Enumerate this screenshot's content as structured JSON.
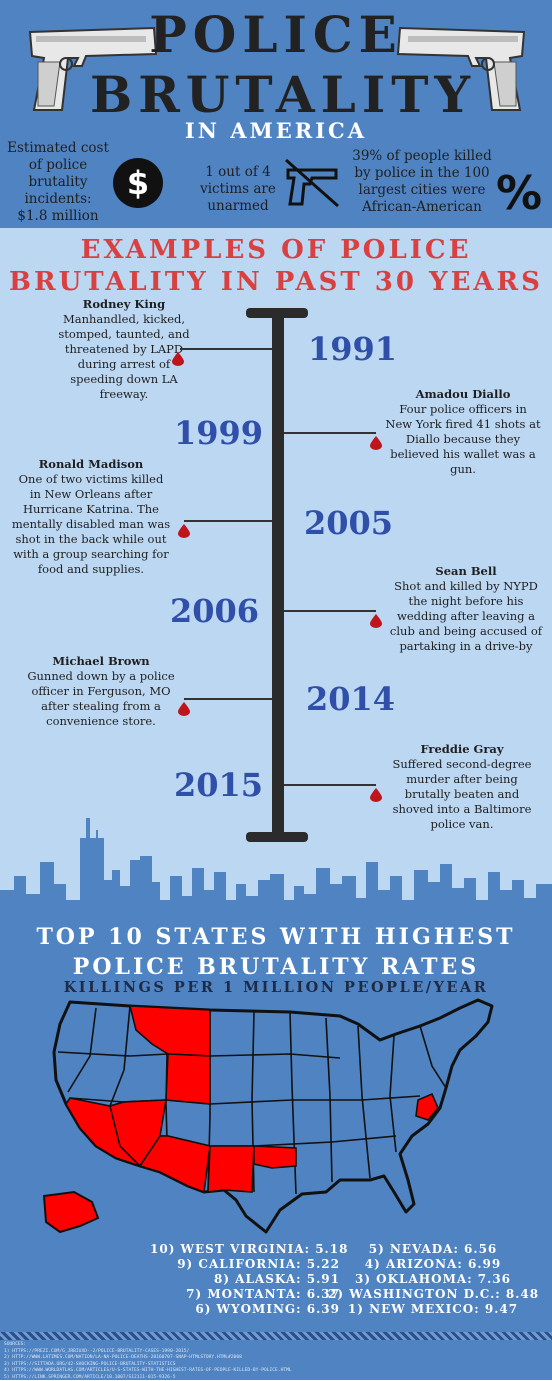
{
  "header": {
    "title_line1": "POLICE",
    "title_line2": "BRUTALITY",
    "title_line3": "IN AMERICA",
    "stat_cost": {
      "lines": [
        "Estimated cost",
        "of police",
        "brutality",
        "incidents:",
        "$1.8 million"
      ],
      "icon": "dollar-icon"
    },
    "stat_unarmed": {
      "lines": [
        "1 out of 4",
        "victims are",
        "unarmed"
      ],
      "icon": "gun-icon"
    },
    "stat_race": {
      "lines": [
        "39% of people killed",
        "by police in the 100",
        "largest cities were",
        "African-American"
      ],
      "icon": "percent-icon"
    }
  },
  "timeline": {
    "title_line1": "EXAMPLES OF POLICE",
    "title_line2": "BRUTALITY IN PAST 30 YEARS",
    "events": [
      {
        "year": "1991",
        "name": "Rodney King",
        "lines": [
          "Manhandled, kicked,",
          "stomped, taunted, and",
          "threatened by LAPD",
          "during arrest of",
          "speeding down LA",
          "freeway."
        ]
      },
      {
        "year": "1999",
        "name": "Amadou Diallo",
        "lines": [
          "Four police officers in",
          "New York fired 41 shots at",
          "Diallo because they",
          "believed his wallet was a",
          "gun."
        ]
      },
      {
        "year": "2005",
        "name": "Ronald Madison",
        "lines": [
          "One of two victims killed",
          "in New Orleans after",
          "Hurricane Katrina. The",
          "mentally disabled man was",
          "shot in the back while out",
          "with a group searching for",
          "food and supplies."
        ]
      },
      {
        "year": "2006",
        "name": "Sean Bell",
        "lines": [
          "Shot and killed by NYPD",
          "the night before his",
          "wedding after leaving a",
          "club and being accused of",
          "partaking in a drive-by"
        ]
      },
      {
        "year": "2014",
        "name": "Michael Brown",
        "lines": [
          "Gunned down by a police",
          "officer in Ferguson, MO",
          "after stealing from a",
          "convenience store."
        ]
      },
      {
        "year": "2015",
        "name": "Freddie Gray",
        "lines": [
          "Suffered second-degree",
          "murder after being",
          "brutally beaten and",
          "shoved into a Baltimore",
          "police van."
        ]
      }
    ]
  },
  "states": {
    "title_line1": "TOP 10 STATES WITH HIGHEST",
    "title_line2": "POLICE BRUTALITY RATES",
    "subtitle": "KILLINGS PER 1 MILLION PEOPLE/YEAR",
    "left_column": [
      "10) WEST VIRGINIA: 5.18",
      "9) CALIFORNIA: 5.22",
      "8) ALASKA: 5.91",
      "7) MONTANTA: 6.37",
      "6) WYOMING: 6.39"
    ],
    "right_column": [
      "5) NEVADA: 6.56",
      "4) ARIZONA: 6.99",
      "3) OKLAHOMA: 7.36",
      "2) WASHINGTON D.C.: 8.48",
      "1) NEW MEXICO: 9.47"
    ],
    "highlight_color": "#ff0000"
  },
  "sources": {
    "label": "SOURCES:",
    "lines": [
      "1) HTTPS://PREZI.COM/G_JRBIUXD--2/POLICE-BRUTALITY-CASES-1990-2015/",
      "2) HTTP://WWW.LATIMES.COM/NATION/LA-NA-POLICE-DEATHS-20160707-SNAP-HTMLSTORY.HTML#2008",
      "3) HTTPS://SITTADA.ORG/42-SHOCKING-POLICE-BRUTALITY-STATISTICS",
      "4) HTTPS://WWW.WORLDATLAS.COM/ARTICLES/U-S-STATES-WITH-THE-HIGHEST-RATES-OF-PEOPLE-KILLED-BY-POLICE.HTML",
      "5) HTTPS://LINK.SPRINGER.COM/ARTICLE/10.1007/S12111-015-9326-5"
    ]
  }
}
